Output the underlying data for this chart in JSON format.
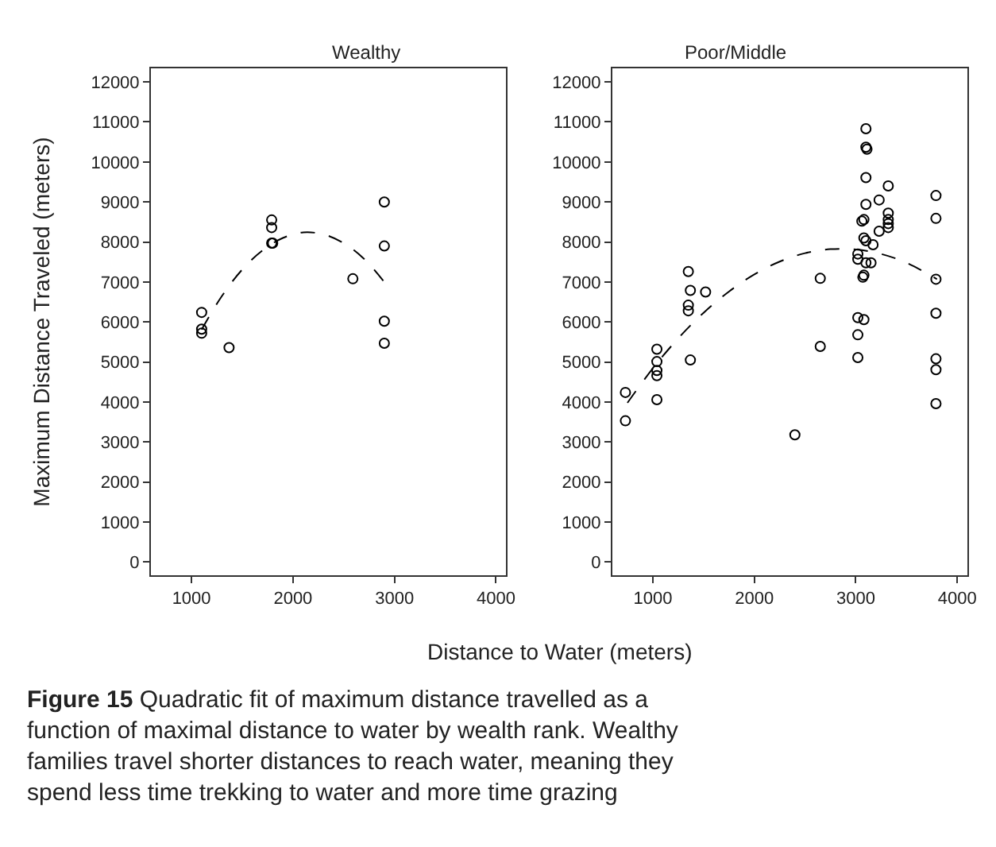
{
  "chart_data": [
    {
      "type": "scatter",
      "title": "Wealthy",
      "xlabel": "Distance to Water (meters)",
      "ylabel": "Maximum Distance Traveled (meters)",
      "annotations": [
        "Figure 15",
        "Quadratic fit of maximum distance travelled as a function of maximal distance to water by wealth rank. Wealthy families travel shorter distances to reach water, meaning they spend less time trekking to water and more time grazing"
      ],
      "xlim": [
        600,
        4100
      ],
      "xticks": [
        1000,
        2000,
        3000,
        4000
      ],
      "ylim": [
        -330,
        12340
      ],
      "yticks": [
        0,
        1000,
        2000,
        3000,
        4000,
        5000,
        6000,
        7000,
        8000,
        9000,
        10000,
        11000,
        12000
      ],
      "series": [
        {
          "marker": "circle",
          "color": "#000000",
          "x": [
            1100,
            1100,
            1100,
            1370,
            1790,
            1790,
            1790,
            1800,
            2590,
            2900,
            2900,
            2900,
            2900
          ],
          "values": [
            6240,
            5820,
            5720,
            5360,
            8550,
            8360,
            7970,
            7970,
            7080,
            9000,
            7900,
            6020,
            5470
          ]
        },
        {
          "type": "line",
          "line_style": "dashed",
          "color": "#000000",
          "x": [
            1100,
            1300,
            1500,
            1700,
            1900,
            2100,
            2300,
            2500,
            2700,
            2900
          ],
          "values": [
            5810,
            6650,
            7310,
            7790,
            8100,
            8240,
            8190,
            7970,
            7580,
            7000
          ]
        }
      ]
    },
    {
      "type": "scatter",
      "title": "Poor/Middle",
      "xlim": [
        600,
        4100
      ],
      "xticks": [
        1000,
        2000,
        3000,
        4000
      ],
      "ylim": [
        -330,
        12340
      ],
      "yticks": [
        0,
        1000,
        2000,
        3000,
        4000,
        5000,
        6000,
        7000,
        8000,
        9000,
        10000,
        11000,
        12000
      ],
      "series": [
        {
          "marker": "circle",
          "color": "#000000",
          "x": [
            730,
            730,
            1040,
            1040,
            1040,
            1040,
            1040,
            1350,
            1370,
            1350,
            1350,
            1520,
            1370,
            2650,
            2650,
            2400,
            3100,
            3100,
            3110,
            3100,
            3100,
            3080,
            3060,
            3230,
            3320,
            3320,
            3320,
            3320,
            3320,
            3230,
            3080,
            3100,
            3170,
            3020,
            3020,
            3100,
            3150,
            3080,
            3070,
            3020,
            3080,
            3020,
            3020,
            3790,
            3790,
            3790,
            3790,
            3790,
            3790,
            3790
          ],
          "values": [
            4240,
            3530,
            5320,
            5010,
            4790,
            4660,
            4060,
            7260,
            6790,
            6420,
            6280,
            6750,
            5050,
            7090,
            5390,
            3180,
            10830,
            10370,
            10320,
            9610,
            8940,
            8560,
            8520,
            9050,
            9400,
            8720,
            8560,
            8460,
            8360,
            8270,
            8100,
            8030,
            7930,
            7700,
            7570,
            7480,
            7480,
            7170,
            7120,
            6110,
            6060,
            5680,
            5110,
            9160,
            8590,
            7070,
            6220,
            5080,
            4810,
            3960
          ]
        },
        {
          "type": "line",
          "line_style": "dashed",
          "color": "#000000",
          "x": [
            750,
            1000,
            1250,
            1500,
            1750,
            2000,
            2250,
            2500,
            2750,
            3000,
            3250,
            3500,
            3800
          ],
          "values": [
            3980,
            4840,
            5590,
            6230,
            6760,
            7190,
            7510,
            7720,
            7820,
            7810,
            7700,
            7480,
            7070
          ]
        }
      ]
    }
  ]
}
